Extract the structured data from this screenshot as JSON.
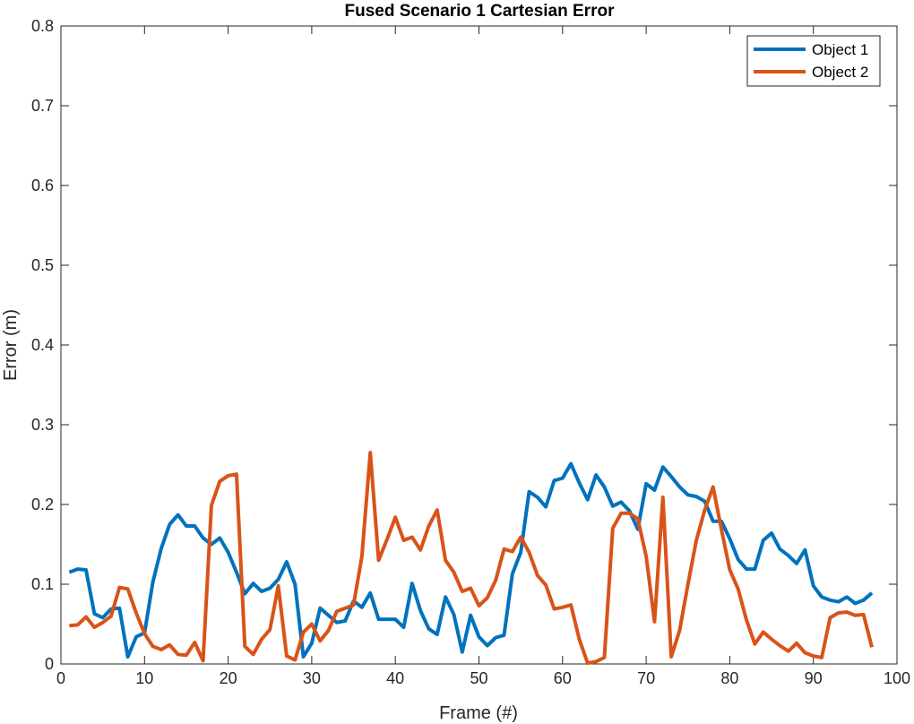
{
  "chart_data": {
    "type": "line",
    "title": "Fused Scenario 1 Cartesian Error",
    "xlabel": "Frame (#)",
    "ylabel": "Error (m)",
    "xlim": [
      0,
      100
    ],
    "ylim": [
      0,
      0.8
    ],
    "xticks": [
      0,
      10,
      20,
      30,
      40,
      50,
      60,
      70,
      80,
      90,
      100
    ],
    "yticks": [
      0,
      0.1,
      0.2,
      0.3,
      0.4,
      0.5,
      0.6,
      0.7,
      0.8
    ],
    "grid": false,
    "legend_position": "top-right",
    "x_start": 1,
    "series": [
      {
        "name": "Object 1",
        "color": "#0072BD",
        "values": [
          0.115,
          0.119,
          0.118,
          0.063,
          0.058,
          0.069,
          0.07,
          0.009,
          0.034,
          0.039,
          0.103,
          0.145,
          0.175,
          0.187,
          0.173,
          0.173,
          0.158,
          0.15,
          0.158,
          0.14,
          0.115,
          0.088,
          0.101,
          0.091,
          0.095,
          0.106,
          0.128,
          0.1,
          0.009,
          0.026,
          0.07,
          0.061,
          0.052,
          0.054,
          0.079,
          0.071,
          0.089,
          0.056,
          0.056,
          0.056,
          0.046,
          0.101,
          0.067,
          0.044,
          0.037,
          0.084,
          0.062,
          0.015,
          0.061,
          0.034,
          0.023,
          0.033,
          0.036,
          0.113,
          0.14,
          0.216,
          0.209,
          0.197,
          0.23,
          0.233,
          0.251,
          0.227,
          0.206,
          0.237,
          0.222,
          0.198,
          0.203,
          0.192,
          0.169,
          0.226,
          0.218,
          0.247,
          0.235,
          0.222,
          0.212,
          0.21,
          0.204,
          0.179,
          0.179,
          0.157,
          0.131,
          0.119,
          0.119,
          0.155,
          0.164,
          0.144,
          0.136,
          0.126,
          0.143,
          0.098,
          0.084,
          0.08,
          0.078,
          0.084,
          0.076,
          0.08,
          0.089
        ]
      },
      {
        "name": "Object 2",
        "color": "#D95319",
        "values": [
          0.048,
          0.049,
          0.059,
          0.046,
          0.052,
          0.06,
          0.096,
          0.094,
          0.064,
          0.038,
          0.022,
          0.018,
          0.024,
          0.012,
          0.011,
          0.027,
          0.004,
          0.199,
          0.229,
          0.236,
          0.238,
          0.022,
          0.012,
          0.031,
          0.043,
          0.098,
          0.01,
          0.005,
          0.04,
          0.05,
          0.029,
          0.042,
          0.066,
          0.07,
          0.074,
          0.135,
          0.265,
          0.13,
          0.156,
          0.184,
          0.155,
          0.159,
          0.143,
          0.173,
          0.193,
          0.13,
          0.115,
          0.091,
          0.095,
          0.073,
          0.083,
          0.105,
          0.144,
          0.141,
          0.159,
          0.14,
          0.111,
          0.099,
          0.069,
          0.071,
          0.074,
          0.031,
          0.001,
          0.003,
          0.008,
          0.17,
          0.189,
          0.189,
          0.182,
          0.135,
          0.053,
          0.209,
          0.009,
          0.042,
          0.1,
          0.155,
          0.193,
          0.222,
          0.169,
          0.118,
          0.094,
          0.055,
          0.025,
          0.04,
          0.031,
          0.023,
          0.016,
          0.026,
          0.014,
          0.01,
          0.008,
          0.058,
          0.064,
          0.065,
          0.061,
          0.062,
          0.021
        ]
      }
    ]
  }
}
